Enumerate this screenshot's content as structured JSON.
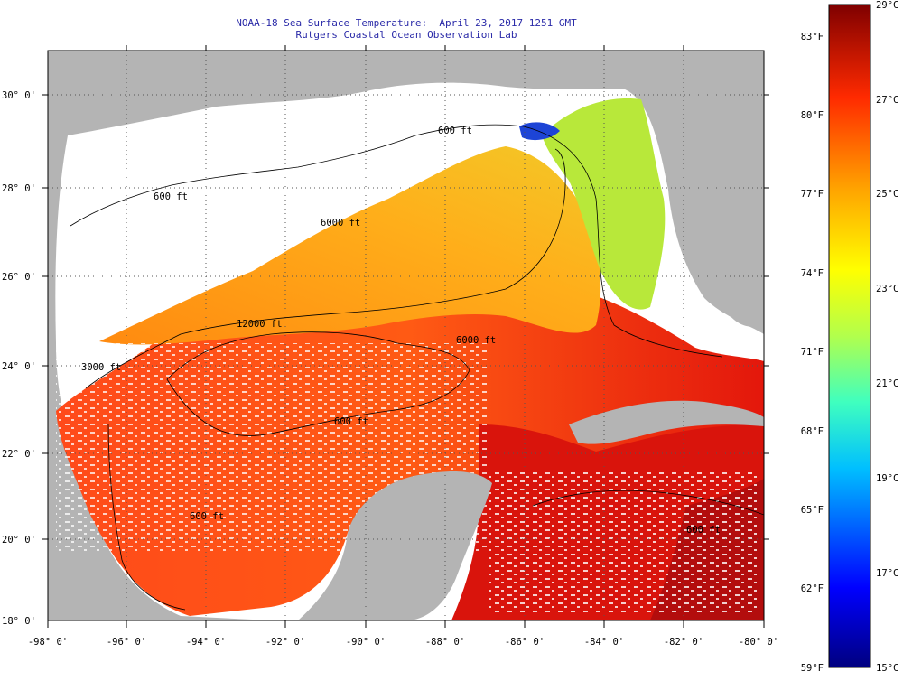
{
  "title": "NOAA-18 Sea Surface Temperature:  April 23, 2017 1251 GMT",
  "subtitle": "Rutgers Coastal Ocean Observation Lab",
  "map": {
    "lat_labels": [
      "30° 0'",
      "28° 0'",
      "26° 0'",
      "24° 0'",
      "22° 0'",
      "20° 0'",
      "18° 0'"
    ],
    "lon_labels": [
      "-98° 0'",
      "-96° 0'",
      "-94° 0'",
      "-92° 0'",
      "-90° 0'",
      "-88° 0'",
      "-86° 0'",
      "-84° 0'",
      "-82° 0'",
      "-80° 0'"
    ],
    "contour_labels": [
      "600 ft",
      "600 ft",
      "6000 ft",
      "12000 ft",
      "6000 ft",
      "600 ft",
      "600 ft",
      "600 ft",
      "3000 ft"
    ],
    "colors": {
      "land": "#b4b4b4",
      "cloud": "#ffffff",
      "grid": "#555555"
    }
  },
  "colorbar": {
    "fahrenheit_labels": [
      "83°F",
      "80°F",
      "77°F",
      "74°F",
      "71°F",
      "68°F",
      "65°F",
      "62°F",
      "59°F"
    ],
    "celsius_labels": [
      "29°C",
      "27°C",
      "25°C",
      "23°C",
      "21°C",
      "19°C",
      "17°C",
      "15°C"
    ],
    "min_c": 15,
    "max_c": 29
  }
}
